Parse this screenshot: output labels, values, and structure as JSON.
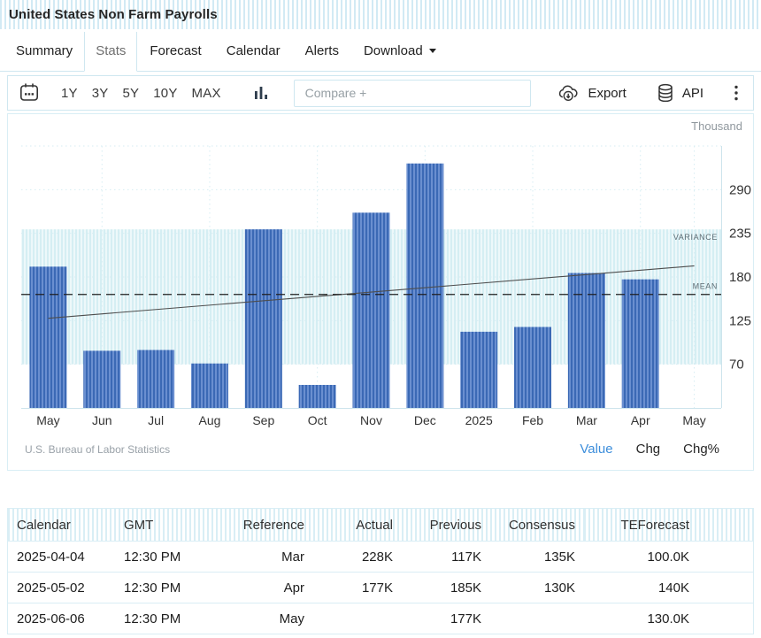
{
  "page": {
    "title": "United States Non Farm Payrolls"
  },
  "tabs": [
    {
      "label": "Summary",
      "active": false,
      "has_menu": false
    },
    {
      "label": "Stats",
      "active": true,
      "has_menu": false
    },
    {
      "label": "Forecast",
      "active": false,
      "has_menu": false
    },
    {
      "label": "Calendar",
      "active": false,
      "has_menu": false
    },
    {
      "label": "Alerts",
      "active": false,
      "has_menu": false
    },
    {
      "label": "Download",
      "active": false,
      "has_menu": true
    }
  ],
  "toolbar": {
    "ranges": [
      "1Y",
      "3Y",
      "5Y",
      "10Y",
      "MAX"
    ],
    "compare_placeholder": "Compare +",
    "export_label": "Export",
    "api_label": "API"
  },
  "chart_data": {
    "type": "bar",
    "title": "United States Non Farm Payrolls",
    "unit_label": "Thousand",
    "categories": [
      "May",
      "Jun",
      "Jul",
      "Aug",
      "Sep",
      "Oct",
      "Nov",
      "Dec",
      "2025",
      "Feb",
      "Mar",
      "Apr",
      "May"
    ],
    "values": [
      193,
      87,
      88,
      71,
      240,
      44,
      261,
      323,
      111,
      117,
      185,
      177,
      null
    ],
    "y_ticks": [
      70,
      125,
      180,
      235,
      290
    ],
    "ylim": [
      15,
      345
    ],
    "mean_value": 158,
    "mean_label": "MEAN",
    "variance_band": [
      70,
      240
    ],
    "variance_label": "VARIANCE",
    "trend_line": {
      "start_value": 128,
      "end_value": 194
    },
    "grid": "dotted",
    "legend_position": "none",
    "bar_stripe_colors": [
      "#3b69b5",
      "#6a8fd0"
    ],
    "band_stripe_colors": [
      "#d5eef3",
      "#edf8fa"
    ],
    "grid_color": "#d6edf3",
    "axis_color": "#cde4ec"
  },
  "chart_footer": {
    "source": "U.S. Bureau of Labor Statistics",
    "modes": [
      "Value",
      "Chg",
      "Chg%"
    ],
    "active_mode": "Value",
    "active_mode_color": "#3d8edb"
  },
  "table": {
    "headers": [
      "Calendar",
      "GMT",
      "Reference",
      "Actual",
      "Previous",
      "Consensus",
      "TEForecast"
    ],
    "rows": [
      [
        "2025-04-04",
        "12:30 PM",
        "Mar",
        "228K",
        "117K",
        "135K",
        "100.0K"
      ],
      [
        "2025-05-02",
        "12:30 PM",
        "Apr",
        "177K",
        "185K",
        "130K",
        "140K"
      ],
      [
        "2025-06-06",
        "12:30 PM",
        "May",
        "",
        "177K",
        "",
        "130.0K"
      ]
    ]
  }
}
